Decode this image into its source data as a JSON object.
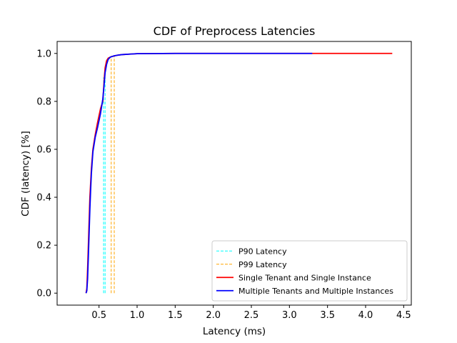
{
  "chart_data": {
    "type": "line",
    "title": "CDF of Preprocess Latencies",
    "xlabel": "Latency (ms)",
    "ylabel": "CDF (latency) [%]",
    "xlim": [
      -0.05,
      4.6
    ],
    "ylim": [
      -0.05,
      1.05
    ],
    "xticks": [
      0.5,
      1.0,
      1.5,
      2.0,
      2.5,
      3.0,
      3.5,
      4.0,
      4.5
    ],
    "xtick_labels": [
      "0.5",
      "1.0",
      "1.5",
      "2.0",
      "2.5",
      "3.0",
      "3.5",
      "4.0",
      "4.5"
    ],
    "yticks": [
      0.0,
      0.2,
      0.4,
      0.6,
      0.8,
      1.0
    ],
    "ytick_labels": [
      "0.0",
      "0.2",
      "0.4",
      "0.6",
      "0.8",
      "1.0"
    ],
    "grid": false,
    "legend_position": "lower-right",
    "series": [
      {
        "name": "Single Tenant and Single Instance",
        "color": "#ff0000",
        "style": "solid",
        "x": [
          0.33,
          0.34,
          0.35,
          0.36,
          0.37,
          0.38,
          0.39,
          0.4,
          0.42,
          0.45,
          0.48,
          0.5,
          0.52,
          0.55,
          0.56,
          0.57,
          0.58,
          0.6,
          0.62,
          0.65,
          0.7,
          0.75,
          0.8,
          0.9,
          1.0,
          1.5,
          2.0,
          3.0,
          3.3,
          4.35
        ],
        "y": [
          0.0,
          0.02,
          0.1,
          0.2,
          0.3,
          0.4,
          0.46,
          0.52,
          0.6,
          0.66,
          0.71,
          0.74,
          0.77,
          0.8,
          0.85,
          0.9,
          0.94,
          0.97,
          0.98,
          0.985,
          0.99,
          0.993,
          0.995,
          0.997,
          0.999,
          1.0,
          1.0,
          1.0,
          1.0,
          1.0
        ]
      },
      {
        "name": "Multiple Tenants and Multiple Instances",
        "color": "#0000ff",
        "style": "solid",
        "x": [
          0.33,
          0.34,
          0.35,
          0.36,
          0.37,
          0.38,
          0.39,
          0.4,
          0.42,
          0.45,
          0.48,
          0.5,
          0.52,
          0.55,
          0.57,
          0.58,
          0.6,
          0.62,
          0.65,
          0.7,
          0.75,
          0.8,
          0.9,
          1.0,
          1.5,
          2.0,
          3.0,
          3.3
        ],
        "y": [
          0.0,
          0.01,
          0.06,
          0.15,
          0.25,
          0.35,
          0.43,
          0.5,
          0.59,
          0.65,
          0.69,
          0.72,
          0.75,
          0.81,
          0.88,
          0.92,
          0.955,
          0.975,
          0.985,
          0.99,
          0.993,
          0.995,
          0.997,
          0.999,
          1.0,
          1.0,
          1.0,
          1.0
        ]
      },
      {
        "name": "P90 Latency",
        "color": "#00ffff",
        "style": "dashed",
        "vertical_lines": [
          {
            "x": 0.56,
            "y_from": 0.0,
            "y_to": 0.9
          },
          {
            "x": 0.58,
            "y_from": 0.0,
            "y_to": 0.9
          }
        ]
      },
      {
        "name": "P99 Latency",
        "color": "#ffa500",
        "style": "dashed",
        "vertical_lines": [
          {
            "x": 0.66,
            "y_from": 0.0,
            "y_to": 0.99
          },
          {
            "x": 0.7,
            "y_from": 0.0,
            "y_to": 0.99
          }
        ]
      }
    ],
    "legend_entries": [
      {
        "label": "P90 Latency",
        "color": "#00ffff",
        "style": "dashed"
      },
      {
        "label": "P99 Latency",
        "color": "#ffa500",
        "style": "dashed"
      },
      {
        "label": "Single Tenant and Single Instance",
        "color": "#ff0000",
        "style": "solid"
      },
      {
        "label": "Multiple Tenants and Multiple Instances",
        "color": "#0000ff",
        "style": "solid"
      }
    ]
  }
}
